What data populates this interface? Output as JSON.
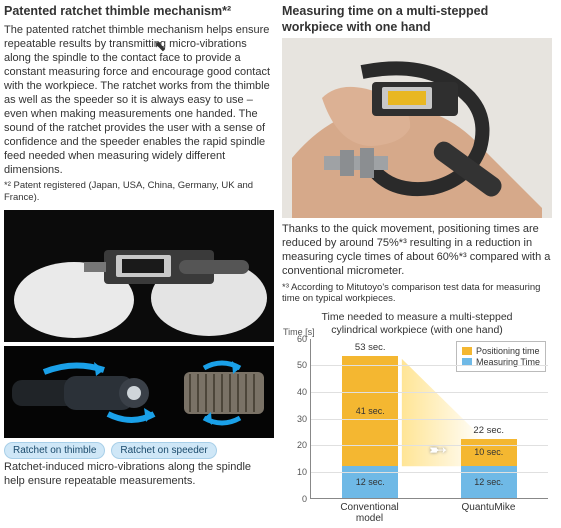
{
  "left": {
    "heading": "Patented ratchet thimble mechanism*²",
    "body": "The patented ratchet thimble mechanism helps ensure repeatable results by transmitting micro-vibrations along the spindle to the contact face to provide a constant measuring force and encourage good contact with the workpiece. The ratchet works from the thimble as well as the speeder so it is always easy to use – even when making measurements one handed. The sound of the ratchet provides the user with a sense of confidence and the speeder enables the rapid spindle feed needed when measuring widely different dimensions.",
    "footnote": "*² Patent registered (Japan, USA, China, Germany, UK and France).",
    "pill1": "Ratchet on thimble",
    "pill2": "Ratchet on speeder",
    "caption": "Ratchet-induced micro-vibrations along the spindle help ensure repeatable measurements."
  },
  "right": {
    "heading": "Measuring time on a multi-stepped workpiece with one hand",
    "body": "Thanks to the quick movement, positioning times are reduced by around 75%*³ resulting in a reduction in measuring cycle times of about 60%*³ compared with a conventional micrometer.",
    "footnote": "*³ According to Mitutoyo's comparison test data for measuring time on typical workpieces."
  },
  "chart": {
    "title1": "Time needed to measure a multi-stepped",
    "title2": "cylindrical workpiece (with one hand)",
    "ytitle": "Time [s]",
    "ymax": 60,
    "ytick_step": 10,
    "legend_pos": "Positioning time",
    "legend_meas": "Measuring Time",
    "bars": [
      {
        "label": "Conventional model",
        "total": "53 sec.",
        "pos": 41,
        "pos_label": "41 sec.",
        "meas": 12,
        "meas_label": "12 sec."
      },
      {
        "label": "QuantuMike",
        "total": "22 sec.",
        "pos": 10,
        "pos_label": "10 sec.",
        "meas": 12,
        "meas_label": "12 sec."
      }
    ],
    "colors": {
      "pos": "#f4b731",
      "meas": "#6fb9e6",
      "grid": "#e0e0e0"
    }
  }
}
